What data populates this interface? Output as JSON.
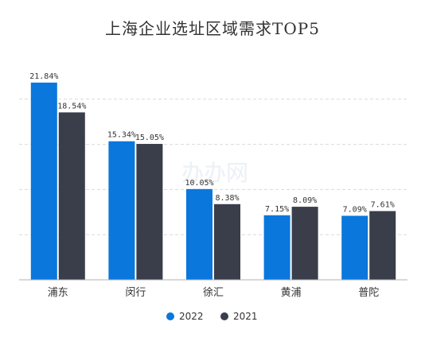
{
  "title": "上海企业选址区域需求TOP5",
  "watermark": "办办网",
  "colors": {
    "s2022": "#0a77dc",
    "s2021": "#3a3d4a",
    "grid": "#d9d9d9",
    "axis": "#b0b0b0"
  },
  "chart_data": {
    "type": "bar",
    "title": "上海企业选址区域需求TOP5",
    "categories": [
      "浦东",
      "闵行",
      "徐汇",
      "黄浦",
      "普陀"
    ],
    "series": [
      {
        "name": "2022",
        "values": [
          21.84,
          15.34,
          10.05,
          7.15,
          7.09
        ],
        "labels": [
          "21.84%",
          "15.34%",
          "10.05%",
          "7.15%",
          "7.09%"
        ]
      },
      {
        "name": "2021",
        "values": [
          18.54,
          15.05,
          8.38,
          8.09,
          7.61
        ],
        "labels": [
          "18.54%",
          "15.05%",
          "8.38%",
          "8.09%",
          "7.61%"
        ]
      }
    ],
    "ylim": [
      0,
      25
    ],
    "grid": true,
    "legend": "bottom"
  }
}
